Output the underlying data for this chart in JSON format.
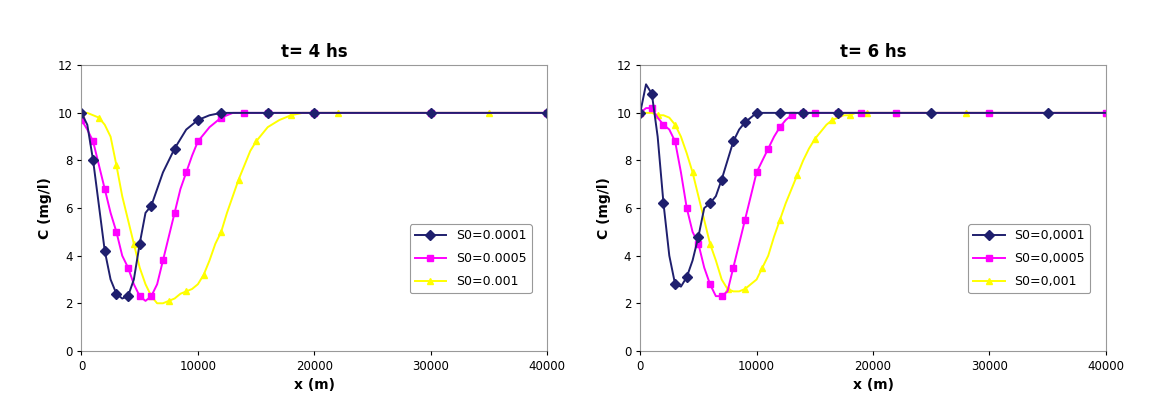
{
  "plot1_title": "t= 4 hs",
  "plot2_title": "t= 6 hs",
  "xlabel": "x (m)",
  "ylabel": "C (mg/l)",
  "xlim": [
    0,
    40000
  ],
  "ylim": [
    0,
    12
  ],
  "yticks": [
    0,
    2,
    4,
    6,
    8,
    10,
    12
  ],
  "xticks": [
    0,
    10000,
    20000,
    30000,
    40000
  ],
  "xticklabels": [
    "0",
    "10000",
    "20000",
    "30000",
    "40000"
  ],
  "colors": {
    "s0001": "#1f1f6e",
    "s0005": "#ff00ff",
    "s001": "#ffff00"
  },
  "plot1": {
    "s0001_x": [
      0,
      500,
      1000,
      1500,
      2000,
      2500,
      3000,
      3500,
      4000,
      4500,
      5000,
      5500,
      6000,
      7000,
      8000,
      9000,
      10000,
      11000,
      12000,
      14000,
      16000,
      18000,
      20000,
      25000,
      30000,
      35000,
      40000
    ],
    "s0001_y": [
      10.0,
      9.5,
      8.0,
      6.1,
      4.2,
      3.0,
      2.4,
      2.2,
      2.3,
      3.0,
      4.5,
      5.8,
      6.1,
      7.5,
      8.5,
      9.3,
      9.7,
      9.9,
      10.0,
      10.0,
      10.0,
      10.0,
      10.0,
      10.0,
      10.0,
      10.0,
      10.0
    ],
    "s0005_x": [
      0,
      500,
      1000,
      1500,
      2000,
      2500,
      3000,
      3500,
      4000,
      4500,
      5000,
      5500,
      6000,
      6500,
      7000,
      7500,
      8000,
      8500,
      9000,
      9500,
      10000,
      11000,
      12000,
      13000,
      14000,
      15000,
      16000,
      18000,
      20000,
      25000,
      30000,
      35000,
      40000
    ],
    "s0005_y": [
      9.7,
      9.3,
      8.8,
      7.8,
      6.8,
      5.8,
      5.0,
      4.0,
      3.5,
      2.8,
      2.3,
      2.1,
      2.3,
      2.8,
      3.8,
      4.8,
      5.8,
      6.8,
      7.5,
      8.2,
      8.8,
      9.4,
      9.8,
      10.0,
      10.0,
      10.0,
      10.0,
      10.0,
      10.0,
      10.0,
      10.0,
      10.0,
      10.0
    ],
    "s001_x": [
      0,
      500,
      1000,
      1500,
      2000,
      2500,
      3000,
      3500,
      4000,
      4500,
      5000,
      5500,
      6000,
      6500,
      7000,
      7500,
      8000,
      8500,
      9000,
      9500,
      10000,
      10500,
      11000,
      11500,
      12000,
      12500,
      13000,
      13500,
      14000,
      14500,
      15000,
      16000,
      17000,
      18000,
      19000,
      20000,
      22000,
      25000,
      30000,
      35000,
      40000
    ],
    "s001_y": [
      10.0,
      10.0,
      9.9,
      9.8,
      9.5,
      9.0,
      7.8,
      6.5,
      5.5,
      4.5,
      3.5,
      2.8,
      2.3,
      2.0,
      2.0,
      2.1,
      2.2,
      2.4,
      2.5,
      2.6,
      2.8,
      3.2,
      3.8,
      4.5,
      5.0,
      5.8,
      6.5,
      7.2,
      7.8,
      8.4,
      8.8,
      9.4,
      9.7,
      9.9,
      10.0,
      10.0,
      10.0,
      10.0,
      10.0,
      10.0,
      10.0
    ]
  },
  "plot2": {
    "s0001_x": [
      0,
      500,
      1000,
      1500,
      2000,
      2500,
      3000,
      3500,
      4000,
      4500,
      5000,
      5500,
      6000,
      6500,
      7000,
      7500,
      8000,
      8500,
      9000,
      9500,
      10000,
      11000,
      12000,
      13000,
      14000,
      15000,
      17000,
      20000,
      25000,
      30000,
      35000,
      40000
    ],
    "s0001_y": [
      10.0,
      11.2,
      10.8,
      9.0,
      6.2,
      4.0,
      2.8,
      2.7,
      3.1,
      3.8,
      4.8,
      6.0,
      6.2,
      6.5,
      7.2,
      8.0,
      8.8,
      9.3,
      9.6,
      9.8,
      10.0,
      10.0,
      10.0,
      10.0,
      10.0,
      10.0,
      10.0,
      10.0,
      10.0,
      10.0,
      10.0,
      10.0
    ],
    "s0005_x": [
      0,
      500,
      1000,
      1500,
      2000,
      2500,
      3000,
      3500,
      4000,
      4500,
      5000,
      5500,
      6000,
      6500,
      7000,
      7500,
      8000,
      8500,
      9000,
      9500,
      10000,
      10500,
      11000,
      11500,
      12000,
      12500,
      13000,
      13500,
      14000,
      14500,
      15000,
      16000,
      17000,
      18000,
      19000,
      20000,
      22000,
      25000,
      30000,
      35000,
      40000
    ],
    "s0005_y": [
      10.0,
      10.2,
      10.2,
      9.8,
      9.5,
      9.3,
      8.8,
      7.5,
      6.0,
      5.0,
      4.5,
      3.5,
      2.8,
      2.3,
      2.3,
      2.5,
      3.5,
      4.5,
      5.5,
      6.5,
      7.5,
      8.0,
      8.5,
      9.0,
      9.4,
      9.7,
      9.9,
      10.0,
      10.0,
      10.0,
      10.0,
      10.0,
      10.0,
      10.0,
      10.0,
      10.0,
      10.0,
      10.0,
      10.0,
      10.0,
      10.0
    ],
    "s001_x": [
      0,
      500,
      1000,
      1500,
      2000,
      2500,
      3000,
      3500,
      4000,
      4500,
      5000,
      5500,
      6000,
      6500,
      7000,
      7500,
      8000,
      8500,
      9000,
      9500,
      10000,
      10500,
      11000,
      11500,
      12000,
      12500,
      13000,
      13500,
      14000,
      14500,
      15000,
      15500,
      16000,
      16500,
      17000,
      17500,
      18000,
      18500,
      19000,
      19500,
      20000,
      21000,
      22000,
      24000,
      26000,
      28000,
      30000,
      35000,
      40000
    ],
    "s001_y": [
      10.0,
      10.0,
      10.0,
      9.9,
      9.9,
      9.8,
      9.5,
      9.0,
      8.3,
      7.5,
      6.5,
      5.5,
      4.5,
      3.8,
      3.0,
      2.6,
      2.5,
      2.5,
      2.6,
      2.8,
      3.0,
      3.5,
      4.0,
      4.8,
      5.5,
      6.2,
      6.8,
      7.4,
      8.0,
      8.5,
      8.9,
      9.2,
      9.5,
      9.7,
      9.8,
      9.9,
      9.9,
      10.0,
      10.0,
      10.0,
      10.0,
      10.0,
      10.0,
      10.0,
      10.0,
      10.0,
      10.0,
      10.0,
      10.0
    ]
  },
  "legend1": [
    "S0=0.0001",
    "S0=0.0005",
    "S0=0.001"
  ],
  "legend2": [
    "S0=0,0001",
    "S0=0,0005",
    "S0=0,001"
  ],
  "bg_color": "#ffffff",
  "outer_bg": "#f0f0f0",
  "title_fontsize": 12,
  "label_fontsize": 10,
  "tick_fontsize": 8.5,
  "legend_fontsize": 9
}
